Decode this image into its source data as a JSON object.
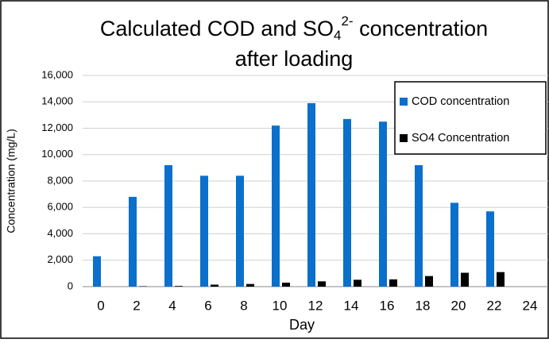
{
  "chart_data": {
    "type": "bar",
    "title": [
      "Calculated COD and SO",
      "4",
      "2-",
      " concentration",
      "after loading"
    ],
    "x_label": "Day",
    "y_label": "Concentration (mg/L)",
    "categories": [
      "0",
      "2",
      "4",
      "6",
      "8",
      "10",
      "12",
      "14",
      "16",
      "18",
      "20",
      "22",
      "24"
    ],
    "series": [
      {
        "name": "COD concentration",
        "color": "#0b6fcc",
        "values": [
          2300,
          6800,
          9200,
          8400,
          8400,
          12200,
          13900,
          12700,
          12500,
          9200,
          6350,
          5700,
          null
        ]
      },
      {
        "name": "SO4 Concentration",
        "color": "#000000",
        "values": [
          0,
          30,
          50,
          150,
          200,
          300,
          400,
          520,
          550,
          800,
          1050,
          1100,
          null
        ]
      }
    ],
    "ylim": [
      0,
      16000
    ],
    "yticks": [
      0,
      {
        "value": 2000,
        "label": "2,000"
      },
      {
        "value": 4000,
        "label": "4,000"
      },
      {
        "value": 6000,
        "label": "6,000"
      },
      {
        "value": 8000,
        "label": "8,000"
      },
      {
        "value": 10000,
        "label": "10,000"
      },
      {
        "value": 12000,
        "label": "12,000"
      },
      {
        "value": 14000,
        "label": "14,000"
      },
      {
        "value": 16000,
        "label": "16,000"
      }
    ],
    "grid": true,
    "legend": "upper right"
  }
}
